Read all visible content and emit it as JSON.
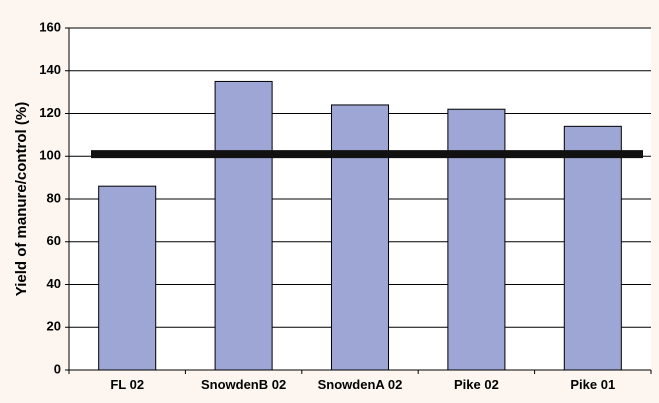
{
  "chart_data": {
    "type": "bar",
    "categories": [
      "FL 02",
      "SnowdenB 02",
      "SnowdenA 02",
      "Pike 02",
      "Pike 01"
    ],
    "values": [
      86,
      135,
      124,
      122,
      114
    ],
    "reference_line": 101,
    "title": "",
    "xlabel": "",
    "ylabel": "Yield of manure/control (%)",
    "ylim": [
      0,
      160
    ],
    "yticks": [
      0,
      20,
      40,
      60,
      80,
      100,
      120,
      140,
      160
    ],
    "grid": true,
    "legend": "none",
    "colors": {
      "bar_fill": "#9ea6d6",
      "bar_stroke": "#000000",
      "reference_line": "#111111",
      "gridline": "#000000",
      "background": "#fdf6f0",
      "plot_background": "#ffffff"
    }
  }
}
